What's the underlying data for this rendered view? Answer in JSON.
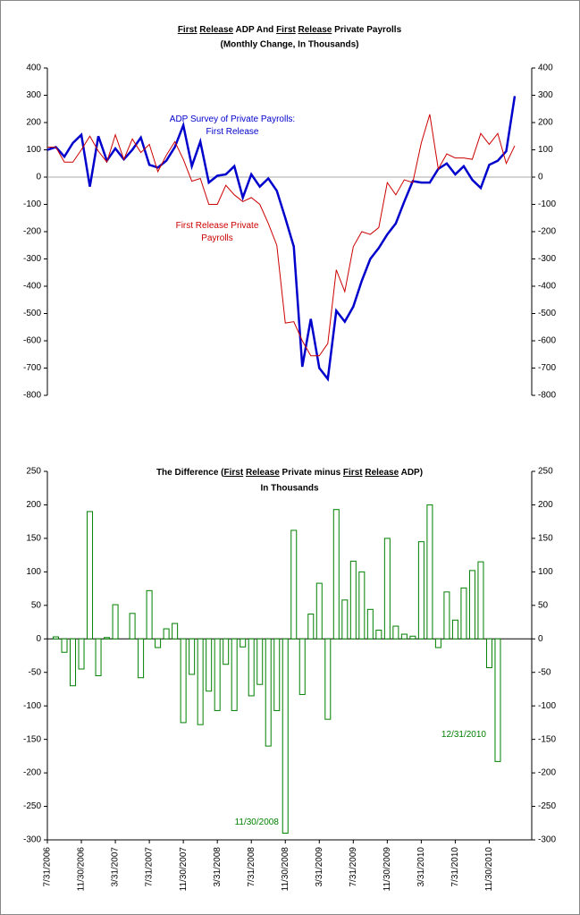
{
  "chart_data": [
    {
      "type": "line",
      "title": [
        {
          "text": "First",
          "underline": true
        },
        {
          "text": " ",
          "underline": false
        },
        {
          "text": "Release",
          "underline": true
        },
        {
          "text": " ADP And ",
          "underline": false
        },
        {
          "text": "First",
          "underline": true
        },
        {
          "text": " ",
          "underline": false
        },
        {
          "text": "Release",
          "underline": true
        },
        {
          "text": " Private Payrolls",
          "underline": false
        }
      ],
      "subtitle": "(Monthly Change, In Thousands)",
      "categories": [
        "7/31/2006",
        null,
        null,
        null,
        "11/30/2006",
        null,
        null,
        null,
        "3/31/2007",
        null,
        null,
        null,
        "7/31/2007",
        null,
        null,
        null,
        "11/30/2007",
        null,
        null,
        null,
        "3/31/2008",
        null,
        null,
        null,
        "7/31/2008",
        null,
        null,
        null,
        "11/30/2008",
        null,
        null,
        null,
        "3/31/2009",
        null,
        null,
        null,
        "7/31/2009",
        null,
        null,
        null,
        "11/30/2009",
        null,
        null,
        null,
        "3/31/2010",
        null,
        null,
        null,
        "7/31/2010",
        null,
        null,
        null,
        "11/30/2010",
        null,
        null,
        null
      ],
      "series": [
        {
          "name": "ADP Survey of Private Payrolls:\nFirst Release",
          "color": "#0000cc",
          "values": [
            100,
            110,
            75,
            125,
            155,
            -35,
            150,
            60,
            105,
            65,
            100,
            145,
            45,
            35,
            60,
            110,
            190,
            40,
            130,
            -20,
            5,
            10,
            40,
            -75,
            10,
            -35,
            -5,
            -50,
            -150,
            -255,
            -695,
            -520,
            -700,
            -740,
            -490,
            -530,
            -475,
            -380,
            -300,
            -260,
            -210,
            -170,
            -90,
            -15,
            -20,
            -20,
            30,
            50,
            10,
            40,
            -10,
            -40,
            45,
            60,
            95,
            297
          ]
        },
        {
          "name": "First Release Private\nPayrolls",
          "color": "#cc0000",
          "values": [
            110,
            110,
            55,
            55,
            100,
            150,
            95,
            55,
            155,
            65,
            140,
            90,
            120,
            20,
            80,
            130,
            65,
            -15,
            -5,
            -100,
            -100,
            -30,
            -65,
            -90,
            -75,
            -100,
            -170,
            -250,
            -535,
            -530,
            -600,
            -655,
            -655,
            -610,
            -340,
            -420,
            -255,
            -200,
            -210,
            -185,
            -20,
            -65,
            -10,
            -20,
            125,
            230,
            30,
            85,
            70,
            70,
            65,
            160,
            120,
            160,
            50,
            115
          ]
        }
      ],
      "ylim": [
        -800,
        400
      ],
      "yticks": [
        -800,
        -700,
        -600,
        -500,
        -400,
        -300,
        -200,
        -100,
        0,
        100,
        200,
        300,
        400
      ]
    },
    {
      "type": "bar",
      "title": [
        {
          "text": "The Difference (",
          "underline": false
        },
        {
          "text": "First",
          "underline": true
        },
        {
          "text": " ",
          "underline": false
        },
        {
          "text": "Release",
          "underline": true
        },
        {
          "text": " Private minus ",
          "underline": false
        },
        {
          "text": "First",
          "underline": true
        },
        {
          "text": " ",
          "underline": false
        },
        {
          "text": "Release",
          "underline": true
        },
        {
          "text": " ADP)",
          "underline": false
        }
      ],
      "subtitle": "In Thousands",
      "categories": [
        "7/31/2006",
        null,
        null,
        null,
        "11/30/2006",
        null,
        null,
        null,
        "3/31/2007",
        null,
        null,
        null,
        "7/31/2007",
        null,
        null,
        null,
        "11/30/2007",
        null,
        null,
        null,
        "3/31/2008",
        null,
        null,
        null,
        "7/31/2008",
        null,
        null,
        null,
        "11/30/2008",
        null,
        null,
        null,
        "3/31/2009",
        null,
        null,
        null,
        "7/31/2009",
        null,
        null,
        null,
        "11/30/2009",
        null,
        null,
        null,
        "3/31/2010",
        null,
        null,
        null,
        "7/31/2010",
        null,
        null,
        null,
        "11/30/2010",
        null,
        null,
        null
      ],
      "values": [
        null,
        3,
        -20,
        -70,
        -45,
        190,
        -55,
        2,
        51,
        0,
        38,
        -58,
        72,
        -13,
        15,
        23,
        -125,
        -53,
        -128,
        -78,
        -107,
        -38,
        -107,
        -12,
        -85,
        -68,
        -160,
        -107,
        -290,
        162,
        -83,
        37,
        83,
        -120,
        193,
        58,
        116,
        100,
        44,
        13,
        150,
        19,
        7,
        4,
        145,
        200,
        -13,
        70,
        28,
        76,
        102,
        115,
        -43,
        -183,
        null,
        null
      ],
      "color": "#008000",
      "annotations": [
        {
          "text": "11/30/2008",
          "index": 28
        },
        {
          "text": "12/31/2010",
          "index": 53
        }
      ],
      "ylim": [
        -300,
        250
      ],
      "yticks": [
        -300,
        -250,
        -200,
        -150,
        -100,
        -50,
        0,
        50,
        100,
        150,
        200,
        250
      ]
    }
  ]
}
